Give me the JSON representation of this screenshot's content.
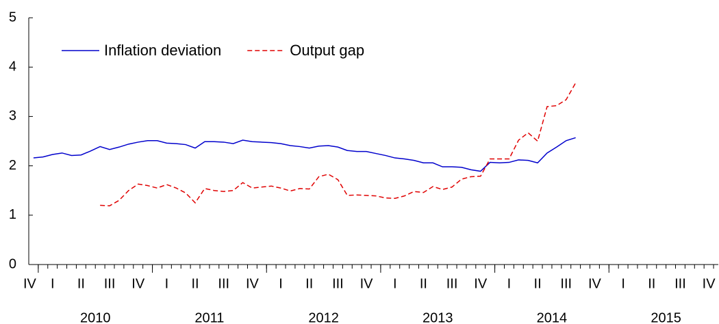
{
  "chart_data": {
    "type": "line",
    "legend": "upper-left",
    "x": [
      2009.9583,
      2010.0417,
      2010.125,
      2010.2083,
      2010.2917,
      2010.375,
      2010.4583,
      2010.5417,
      2010.625,
      2010.7083,
      2010.7917,
      2010.875,
      2010.9583,
      2011.0417,
      2011.125,
      2011.2083,
      2011.2917,
      2011.375,
      2011.4583,
      2011.5417,
      2011.625,
      2011.7083,
      2011.7917,
      2011.875,
      2011.9583,
      2012.0417,
      2012.125,
      2012.2083,
      2012.2917,
      2012.375,
      2012.4583,
      2012.5417,
      2012.625,
      2012.7083,
      2012.7917,
      2012.875,
      2012.9583,
      2013.0417,
      2013.125,
      2013.2083,
      2013.2917,
      2013.375,
      2013.4583,
      2013.5417,
      2013.625,
      2013.7083,
      2013.7917,
      2013.875,
      2013.9583,
      2014.0417,
      2014.125,
      2014.2083,
      2014.2917,
      2014.375,
      2014.4583,
      2014.5417,
      2014.625,
      2014.7083
    ],
    "series": [
      {
        "name": "Inflation deviation",
        "color": "#0000cc",
        "dash": "solid",
        "values": [
          2.16,
          2.18,
          2.23,
          2.26,
          2.21,
          2.22,
          2.3,
          2.39,
          2.33,
          2.38,
          2.44,
          2.48,
          2.51,
          2.51,
          2.46,
          2.45,
          2.43,
          2.36,
          2.49,
          2.49,
          2.48,
          2.45,
          2.52,
          2.49,
          2.48,
          2.47,
          2.45,
          2.41,
          2.39,
          2.36,
          2.4,
          2.41,
          2.38,
          2.31,
          2.29,
          2.29,
          2.25,
          2.21,
          2.16,
          2.14,
          2.11,
          2.06,
          2.06,
          1.98,
          1.98,
          1.97,
          1.92,
          1.89,
          2.07,
          2.06,
          2.07,
          2.12,
          2.11,
          2.06,
          2.26,
          2.38,
          2.51,
          2.57
        ]
      },
      {
        "name": "Output gap",
        "color": "#e00000",
        "dash": "dashed",
        "values": [
          null,
          null,
          null,
          null,
          null,
          null,
          null,
          1.2,
          1.19,
          1.3,
          1.5,
          1.63,
          1.6,
          1.55,
          1.62,
          1.55,
          1.45,
          1.25,
          1.54,
          1.5,
          1.48,
          1.5,
          1.66,
          1.55,
          1.57,
          1.59,
          1.55,
          1.49,
          1.54,
          1.53,
          1.78,
          1.83,
          1.72,
          1.4,
          1.41,
          1.4,
          1.39,
          1.35,
          1.34,
          1.39,
          1.48,
          1.46,
          1.58,
          1.52,
          1.57,
          1.73,
          1.78,
          1.79,
          2.14,
          2.14,
          2.14,
          2.52,
          2.67,
          2.5,
          3.2,
          3.22,
          3.34,
          3.68
        ]
      }
    ],
    "xlim": [
      2009.9167,
      2015.9583
    ],
    "xticks": [
      {
        "value": 2009.875,
        "label": "IV"
      },
      {
        "value": 2010.125,
        "label": "I"
      },
      {
        "value": 2010.375,
        "label": "II"
      },
      {
        "value": 2010.625,
        "label": "III"
      },
      {
        "value": 2010.875,
        "label": "IV"
      },
      {
        "value": 2011.125,
        "label": "I"
      },
      {
        "value": 2011.375,
        "label": "II"
      },
      {
        "value": 2011.625,
        "label": "III"
      },
      {
        "value": 2011.875,
        "label": "IV"
      },
      {
        "value": 2012.125,
        "label": "I"
      },
      {
        "value": 2012.375,
        "label": "II"
      },
      {
        "value": 2012.625,
        "label": "III"
      },
      {
        "value": 2012.875,
        "label": "IV"
      },
      {
        "value": 2013.125,
        "label": "I"
      },
      {
        "value": 2013.375,
        "label": "II"
      },
      {
        "value": 2013.625,
        "label": "III"
      },
      {
        "value": 2013.875,
        "label": "IV"
      },
      {
        "value": 2014.125,
        "label": "I"
      },
      {
        "value": 2014.375,
        "label": "II"
      },
      {
        "value": 2014.625,
        "label": "III"
      },
      {
        "value": 2014.875,
        "label": "IV"
      },
      {
        "value": 2015.125,
        "label": "I"
      },
      {
        "value": 2015.375,
        "label": "II"
      },
      {
        "value": 2015.625,
        "label": "III"
      },
      {
        "value": 2015.875,
        "label": "IV"
      }
    ],
    "year_ticks": [
      {
        "value": 2010.5,
        "label": "2010"
      },
      {
        "value": 2011.5,
        "label": "2011"
      },
      {
        "value": 2012.5,
        "label": "2012"
      },
      {
        "value": 2013.5,
        "label": "2013"
      },
      {
        "value": 2014.5,
        "label": "2014"
      },
      {
        "value": 2015.5,
        "label": "2015"
      }
    ],
    "ylim": [
      0,
      5
    ],
    "yticks": [
      0,
      1,
      2,
      3,
      4,
      5
    ],
    "grid": false
  }
}
